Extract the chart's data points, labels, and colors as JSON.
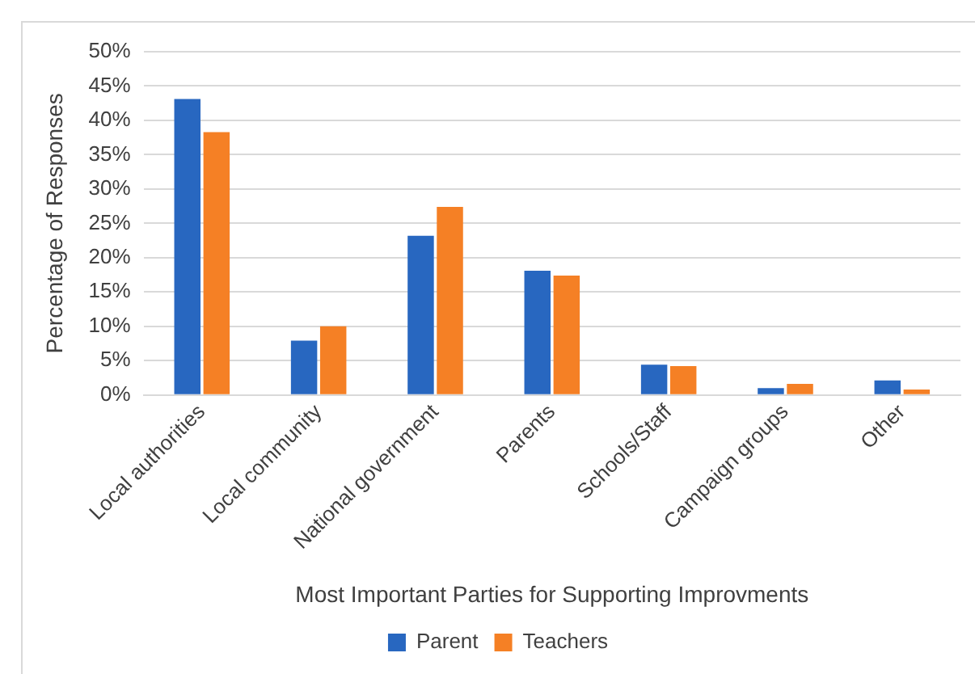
{
  "chart_data": {
    "type": "bar",
    "xlabel": "Most Important Parties for Supporting Improvments",
    "ylabel": "Percentage of Responses",
    "categories": [
      "Local authorities",
      "Local community",
      "National government",
      "Parents",
      "Schools/Staff",
      "Campaign groups",
      "Other"
    ],
    "series": [
      {
        "name": "Parent",
        "color": "#2867c0",
        "values": [
          43.1,
          7.9,
          23.2,
          18.1,
          4.4,
          1.0,
          2.1
        ]
      },
      {
        "name": "Teachers",
        "color": "#f58025",
        "values": [
          38.3,
          10.0,
          27.4,
          17.4,
          4.2,
          1.6,
          0.8
        ]
      }
    ],
    "ylim": [
      0,
      50
    ],
    "yticks": [
      {
        "value": 0,
        "label": "0%"
      },
      {
        "value": 5,
        "label": "5%"
      },
      {
        "value": 10,
        "label": "10%"
      },
      {
        "value": 15,
        "label": "15%"
      },
      {
        "value": 20,
        "label": "20%"
      },
      {
        "value": 25,
        "label": "25%"
      },
      {
        "value": 30,
        "label": "30%"
      },
      {
        "value": 35,
        "label": "35%"
      },
      {
        "value": 40,
        "label": "40%"
      },
      {
        "value": 45,
        "label": "45%"
      },
      {
        "value": 50,
        "label": "50%"
      }
    ],
    "grid": "y",
    "legend": "bottom"
  }
}
